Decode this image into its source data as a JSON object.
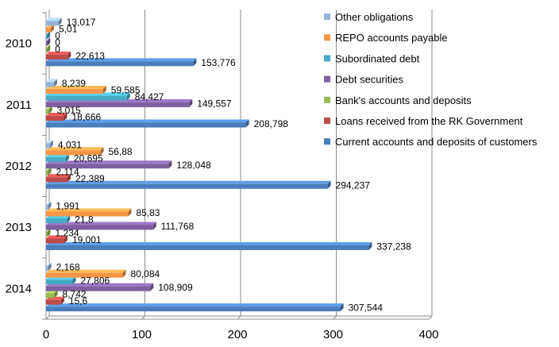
{
  "chart_data": {
    "type": "bar",
    "orientation": "horizontal",
    "style": "3d-clustered",
    "categories": [
      "2010",
      "2011",
      "2012",
      "2013",
      "2014"
    ],
    "xlim": [
      0,
      400
    ],
    "xticks": [
      "0",
      "100",
      "200",
      "300",
      "400"
    ],
    "grid": "vertical-major",
    "legend_position": "right-top",
    "series": [
      {
        "name": "Current accounts and deposits of customers",
        "color": "#4a7ebb",
        "values": [
          153.776,
          208.798,
          294.237,
          337.238,
          307.544
        ],
        "labels": [
          "153,776",
          "208,798",
          "294,237",
          "337,238",
          "307,544"
        ]
      },
      {
        "name": "Loans received from the RK Government",
        "color": "#be4b48",
        "values": [
          22.613,
          18.666,
          22.389,
          19.001,
          15.6
        ],
        "labels": [
          "22,613",
          "18,666",
          "22,389",
          "19,001",
          "15,6"
        ]
      },
      {
        "name": "Bank's accounts and deposits",
        "color": "#98b954",
        "values": [
          0,
          3.015,
          2.114,
          1.234,
          8.742
        ],
        "labels": [
          "0",
          "3,015",
          "2,114",
          "1,234",
          "8,742"
        ]
      },
      {
        "name": "Debt securities",
        "color": "#7d60a0",
        "values": [
          0,
          149.557,
          128.048,
          111.768,
          108.909
        ],
        "labels": [
          "0",
          "149,557",
          "128,048",
          "111,768",
          "108,909"
        ]
      },
      {
        "name": "Subordinated debt",
        "color": "#46aac5",
        "values": [
          0,
          84.427,
          20.695,
          21.8,
          27.806
        ],
        "labels": [
          "0",
          "84,427",
          "20,695",
          "21,8",
          "27,806"
        ]
      },
      {
        "name": "REPO accounts payable",
        "color": "#f79646",
        "values": [
          5.01,
          59.585,
          56.88,
          85.83,
          80.084
        ],
        "labels": [
          "5,01",
          "59,585",
          "56,88",
          "85,83",
          "80,084"
        ]
      },
      {
        "name": "Other obligations",
        "color": "#95b3d7",
        "values": [
          13.017,
          8.239,
          4.031,
          1.991,
          2.168
        ],
        "labels": [
          "13,017",
          "8,239",
          "4,031",
          "1,991",
          "2,168"
        ]
      }
    ],
    "legend_order": [
      6,
      5,
      4,
      3,
      2,
      1,
      0
    ]
  }
}
